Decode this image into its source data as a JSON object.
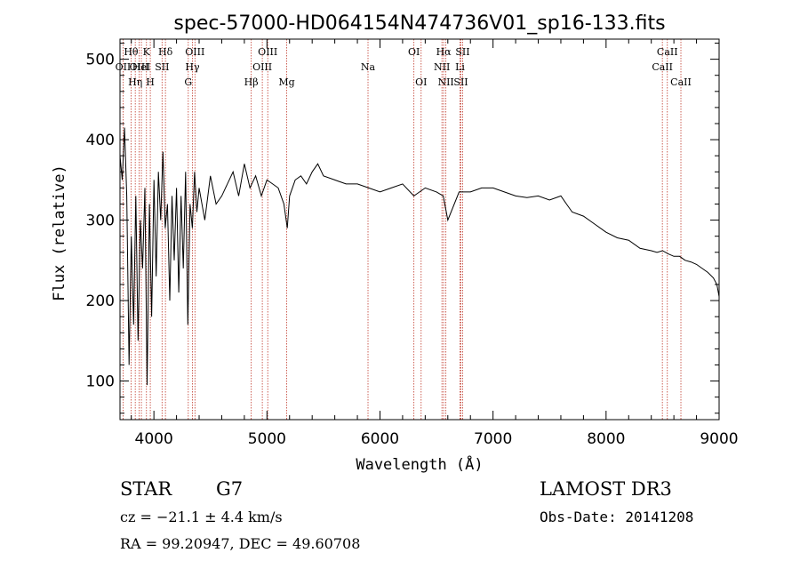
{
  "chart_data": {
    "type": "line",
    "title": "spec-57000-HD064154N474736V01_sp16-133.fits",
    "xlabel": "Wavelength (Å)",
    "ylabel": "Flux (relative)",
    "xlim": [
      3700,
      9000
    ],
    "ylim": [
      52,
      525
    ],
    "xticks": [
      4000,
      5000,
      6000,
      7000,
      8000,
      9000
    ],
    "yticks": [
      100,
      200,
      300,
      400,
      500
    ],
    "series": [
      {
        "name": "spectrum",
        "x": [
          3700,
          3720,
          3740,
          3760,
          3780,
          3800,
          3820,
          3840,
          3860,
          3880,
          3900,
          3920,
          3940,
          3960,
          3980,
          4000,
          4020,
          4040,
          4060,
          4080,
          4100,
          4120,
          4140,
          4160,
          4180,
          4200,
          4220,
          4240,
          4260,
          4280,
          4300,
          4320,
          4340,
          4360,
          4380,
          4400,
          4450,
          4500,
          4550,
          4600,
          4650,
          4700,
          4750,
          4800,
          4850,
          4900,
          4950,
          5000,
          5050,
          5100,
          5150,
          5180,
          5200,
          5250,
          5300,
          5350,
          5400,
          5450,
          5500,
          5600,
          5700,
          5800,
          5900,
          6000,
          6100,
          6200,
          6300,
          6400,
          6500,
          6560,
          6600,
          6700,
          6800,
          6900,
          7000,
          7100,
          7200,
          7300,
          7400,
          7500,
          7600,
          7650,
          7700,
          7800,
          7900,
          8000,
          8100,
          8200,
          8300,
          8400,
          8450,
          8500,
          8550,
          8600,
          8650,
          8700,
          8750,
          8800,
          8850,
          8900,
          8950,
          8980,
          9000
        ],
        "y": [
          380,
          350,
          415,
          330,
          120,
          280,
          170,
          330,
          150,
          300,
          240,
          340,
          95,
          320,
          180,
          350,
          230,
          360,
          300,
          385,
          290,
          320,
          200,
          330,
          250,
          340,
          210,
          330,
          240,
          360,
          170,
          320,
          290,
          360,
          310,
          340,
          300,
          355,
          320,
          330,
          345,
          360,
          330,
          370,
          340,
          355,
          330,
          350,
          345,
          340,
          320,
          290,
          330,
          350,
          355,
          345,
          360,
          370,
          355,
          350,
          345,
          345,
          340,
          335,
          340,
          345,
          330,
          340,
          335,
          330,
          300,
          335,
          335,
          340,
          340,
          335,
          330,
          328,
          330,
          325,
          330,
          320,
          310,
          305,
          295,
          285,
          278,
          275,
          265,
          262,
          260,
          262,
          258,
          255,
          255,
          250,
          248,
          245,
          240,
          235,
          228,
          220,
          205
        ]
      }
    ],
    "lines": [
      {
        "name": "OII",
        "x": 3727,
        "row": 2
      },
      {
        "name": "Hθ",
        "x": 3798,
        "row": 1
      },
      {
        "name": "Hη",
        "x": 3835,
        "row": 3
      },
      {
        "name": "OIII",
        "x": 3869,
        "row": 2
      },
      {
        "name": "HeI",
        "x": 3889,
        "row": 2
      },
      {
        "name": "K",
        "x": 3934,
        "row": 1
      },
      {
        "name": "H",
        "x": 3968,
        "row": 3
      },
      {
        "name": "SII",
        "x": 4072,
        "row": 2
      },
      {
        "name": "Hδ",
        "x": 4102,
        "row": 1
      },
      {
        "name": "G",
        "x": 4304,
        "row": 3
      },
      {
        "name": "Hγ",
        "x": 4341,
        "row": 2
      },
      {
        "name": "OIII",
        "x": 4363,
        "row": 1
      },
      {
        "name": "Hβ",
        "x": 4861,
        "row": 3
      },
      {
        "name": "OIII",
        "x": 4959,
        "row": 2
      },
      {
        "name": "OIII",
        "x": 5007,
        "row": 1
      },
      {
        "name": "Mg",
        "x": 5175,
        "row": 3
      },
      {
        "name": "Na",
        "x": 5894,
        "row": 2
      },
      {
        "name": "OI",
        "x": 6300,
        "row": 1
      },
      {
        "name": "OI",
        "x": 6364,
        "row": 3
      },
      {
        "name": "NII",
        "x": 6548,
        "row": 2
      },
      {
        "name": "Hα",
        "x": 6563,
        "row": 1
      },
      {
        "name": "NII",
        "x": 6583,
        "row": 3
      },
      {
        "name": "Li",
        "x": 6708,
        "row": 2
      },
      {
        "name": "SII",
        "x": 6716,
        "row": 3
      },
      {
        "name": "SII",
        "x": 6731,
        "row": 1
      },
      {
        "name": "CaII",
        "x": 8498,
        "row": 2
      },
      {
        "name": "CaII",
        "x": 8542,
        "row": 1
      },
      {
        "name": "CaII",
        "x": 8662,
        "row": 3
      }
    ]
  },
  "info": {
    "class": "STAR",
    "subclass": "G7",
    "cz": "cz = −21.1 ± 4.4 km/s",
    "coords": "RA =  99.20947, DEC =  49.60708",
    "survey": "LAMOST DR3",
    "obsdate": "Obs-Date: 20141208"
  },
  "colors": {
    "axis": "#000000",
    "spectrum": "#000000",
    "line_marker": "#c0392b"
  }
}
